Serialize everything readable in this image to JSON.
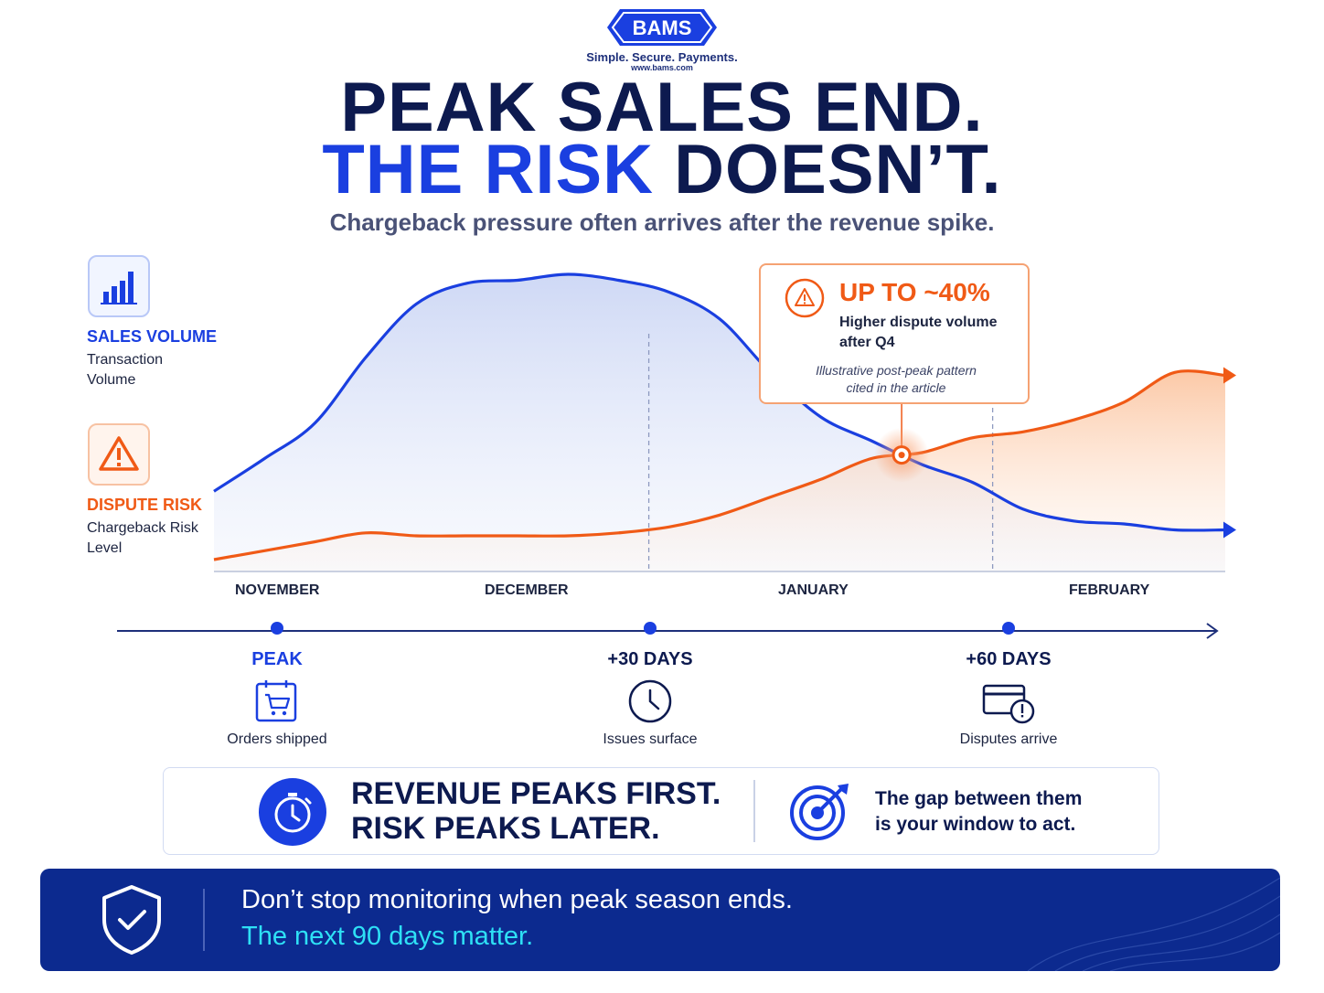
{
  "brand": {
    "logo_text": "BAMS",
    "tagline": "Simple. Secure. Payments.",
    "url": "www.bams.com"
  },
  "headline": {
    "line1": "PEAK SALES END.",
    "line2_highlight": "THE RISK",
    "line2_rest": "DOESN’T."
  },
  "subtitle": "Chargeback pressure often arrives after the revenue spike.",
  "legend": {
    "sales": {
      "title": "SALES VOLUME",
      "text": "Transaction Volume",
      "icon": "bar-chart-icon",
      "color": "#1a3fe0"
    },
    "risk": {
      "title": "DISPUTE RISK",
      "text": "Chargeback Risk Level",
      "icon": "warning-icon",
      "color": "#f05a16"
    }
  },
  "callout": {
    "headline": "UP TO ~40%",
    "line1": "Higher dispute volume",
    "line2": "after Q4",
    "note1": "Illustrative post-peak pattern",
    "note2": "cited in the article"
  },
  "chart_data": {
    "type": "area",
    "x_labels": [
      "NOVEMBER",
      "DECEMBER",
      "JANUARY",
      "FEBRUARY"
    ],
    "x": [
      0,
      0.05,
      0.1,
      0.15,
      0.2,
      0.25,
      0.3,
      0.35,
      0.4,
      0.45,
      0.5,
      0.55,
      0.6,
      0.65,
      0.7,
      0.75,
      0.8,
      0.85,
      0.9,
      0.95,
      1.0
    ],
    "series": [
      {
        "name": "SALES VOLUME",
        "values": [
          0.27,
          0.38,
          0.5,
          0.72,
          0.9,
          0.97,
          0.98,
          1.0,
          0.98,
          0.94,
          0.85,
          0.67,
          0.52,
          0.44,
          0.36,
          0.3,
          0.21,
          0.17,
          0.16,
          0.14,
          0.14
        ]
      },
      {
        "name": "DISPUTE RISK",
        "values": [
          0.04,
          0.07,
          0.1,
          0.13,
          0.12,
          0.12,
          0.12,
          0.12,
          0.13,
          0.15,
          0.19,
          0.25,
          0.31,
          0.38,
          0.4,
          0.45,
          0.47,
          0.51,
          0.57,
          0.67,
          0.66
        ]
      }
    ],
    "dividers": [
      0.43,
      0.77
    ],
    "grid": false,
    "legend": "left"
  },
  "timeline": [
    {
      "label": "PEAK",
      "caption": "Orders shipped",
      "icon": "shopping-cart-icon"
    },
    {
      "label": "+30 DAYS",
      "caption": "Issues surface",
      "icon": "clock-icon"
    },
    {
      "label": "+60 DAYS",
      "caption": "Disputes arrive",
      "icon": "card-alert-icon"
    }
  ],
  "band": {
    "line1": "REVENUE PEAKS FIRST.",
    "line2": "RISK PEAKS LATER.",
    "text1": "The gap between them",
    "text2": "is your window to act."
  },
  "footer": {
    "line1": "Don’t stop monitoring when peak season ends.",
    "line2": "The next 90 days matter."
  },
  "colors": {
    "navy": "#0d1a4f",
    "blue": "#1a3fe0",
    "orange": "#f05a16",
    "cyan": "#2ee0f5",
    "footer_bg": "#0c2a8f"
  }
}
